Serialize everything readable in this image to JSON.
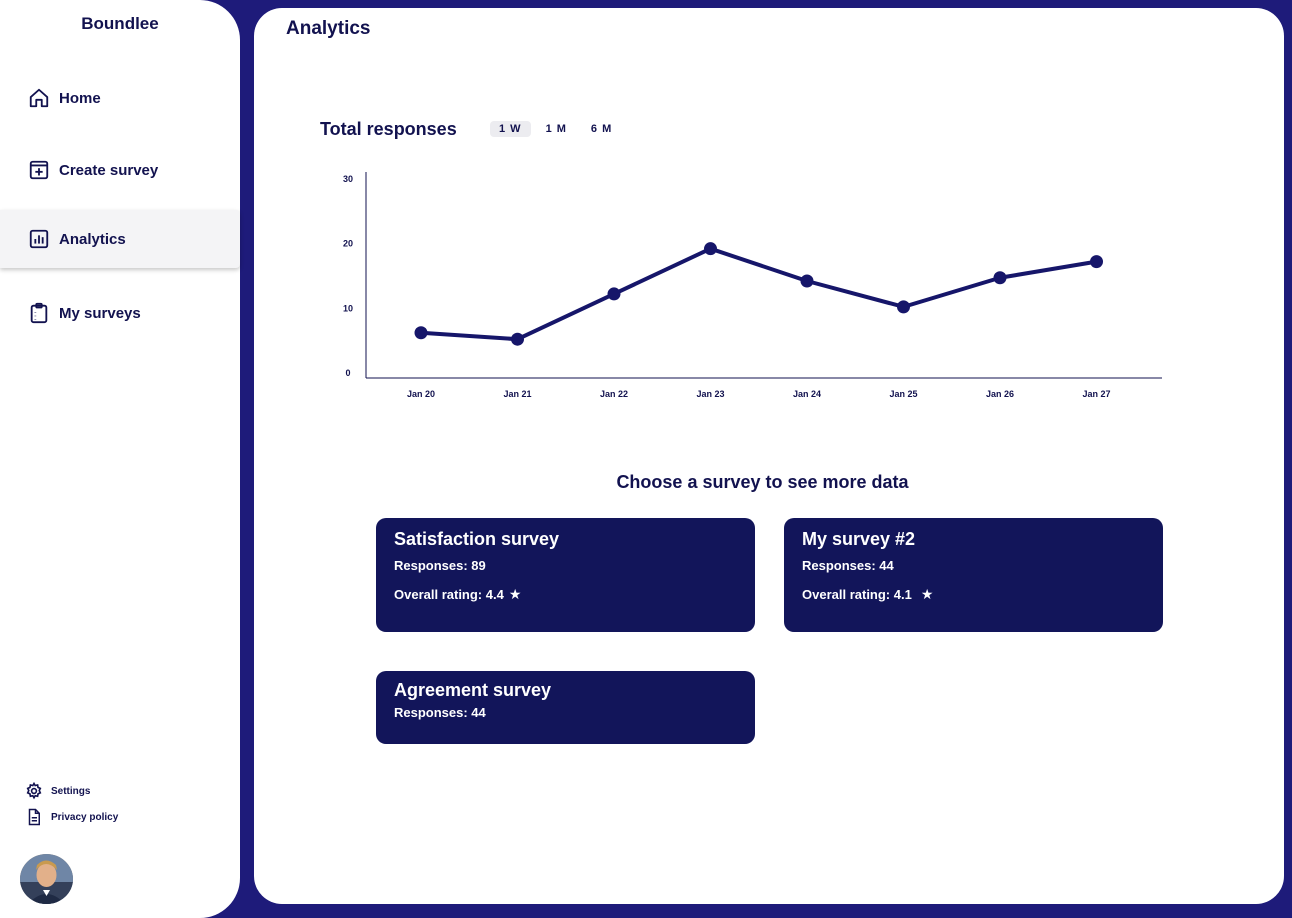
{
  "sidebar": {
    "brand": "Boundlee",
    "nav": [
      {
        "label": "Home",
        "icon": "home-icon"
      },
      {
        "label": "Create survey",
        "icon": "add-square-icon"
      },
      {
        "label": "Analytics",
        "icon": "bar-chart-icon",
        "active": true
      },
      {
        "label": "My surveys",
        "icon": "clipboard-icon"
      }
    ],
    "footer": [
      {
        "label": "Settings",
        "icon": "gear-icon"
      },
      {
        "label": "Privacy policy",
        "icon": "document-icon"
      }
    ]
  },
  "main": {
    "title": "Analytics",
    "chart_title": "Total responses",
    "ranges": [
      "1 W",
      "1 M",
      "6 M"
    ],
    "active_range": "1 W",
    "section_title": "Choose a survey to see more data",
    "cards": [
      {
        "title": "Satisfaction survey",
        "responses": "Responses: 89",
        "rating": "Overall rating: 4.4"
      },
      {
        "title": "My survey #2",
        "responses": "Responses: 44",
        "rating": "Overall rating: 4.1"
      },
      {
        "title": "Agreement survey",
        "responses": "Responses: 44"
      }
    ]
  },
  "chart_data": {
    "type": "line",
    "title": "",
    "categories": [
      "Jan 20",
      "Jan 21",
      "Jan 22",
      "Jan 23",
      "Jan 24",
      "Jan 25",
      "Jan 26",
      "Jan 27"
    ],
    "values": [
      7,
      6,
      13,
      20,
      15,
      11,
      15.5,
      18
    ],
    "ylim": [
      0,
      30
    ],
    "yticks": [
      0,
      10,
      20,
      30
    ],
    "grid": false,
    "color": "#16166a"
  }
}
